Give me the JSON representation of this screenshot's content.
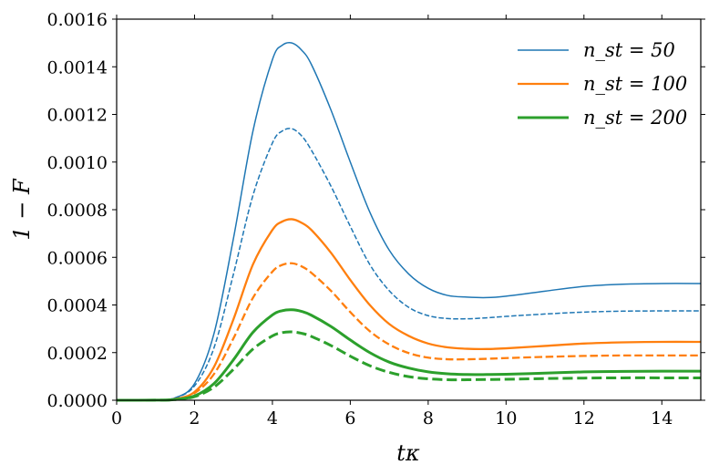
{
  "chart_data": {
    "type": "line",
    "xlabel": "tκ",
    "ylabel": "1 − F",
    "xlim": [
      0,
      15
    ],
    "ylim": [
      0,
      0.0016
    ],
    "xticks": [
      "0",
      "2",
      "4",
      "6",
      "8",
      "10",
      "12",
      "14"
    ],
    "yticks": [
      "0.0000",
      "0.0002",
      "0.0004",
      "0.0006",
      "0.0008",
      "0.0010",
      "0.0012",
      "0.0014",
      "0.0016"
    ],
    "grid": false,
    "legend_position": "top-right",
    "legend": [
      {
        "label": "n_st = 50",
        "color": "#1f77b4"
      },
      {
        "label": "n_st = 100",
        "color": "#ff7f0e"
      },
      {
        "label": "n_st = 200",
        "color": "#2ca02c"
      }
    ],
    "series": [
      {
        "name": "n_st = 50",
        "color": "#1f77b4",
        "style": "solid",
        "x": [
          0,
          1,
          1.5,
          2,
          2.5,
          3,
          3.5,
          4,
          4.25,
          4.5,
          4.75,
          5,
          5.5,
          6,
          6.5,
          7,
          7.5,
          8,
          8.5,
          9,
          9.5,
          10,
          11,
          12,
          13,
          14,
          15
        ],
        "y": [
          0,
          1e-06,
          1e-05,
          7e-05,
          0.00028,
          0.00068,
          0.00113,
          0.00143,
          0.00149,
          0.0015,
          0.00147,
          0.00141,
          0.00122,
          0.001,
          0.00079,
          0.00063,
          0.00053,
          0.00047,
          0.00044,
          0.000433,
          0.000431,
          0.000437,
          0.000458,
          0.000478,
          0.000487,
          0.00049,
          0.00049
        ]
      },
      {
        "name": "",
        "color": "#1f77b4",
        "style": "dashed",
        "x": [
          0,
          1,
          1.5,
          2,
          2.5,
          3,
          3.5,
          4,
          4.25,
          4.5,
          4.75,
          5,
          5.5,
          6,
          6.5,
          7,
          7.5,
          8,
          8.5,
          9,
          9.5,
          10,
          11,
          12,
          13,
          14,
          15
        ],
        "y": [
          0,
          1e-06,
          1e-05,
          6e-05,
          0.00022,
          0.00053,
          0.00086,
          0.00108,
          0.00113,
          0.00114,
          0.00111,
          0.00105,
          0.0009,
          0.00073,
          0.00057,
          0.00046,
          0.00039,
          0.000355,
          0.000343,
          0.000342,
          0.000346,
          0.000352,
          0.000362,
          0.00037,
          0.000374,
          0.000375,
          0.000375
        ]
      },
      {
        "name": "n_st = 100",
        "color": "#ff7f0e",
        "style": "solid",
        "x": [
          0,
          1,
          1.5,
          2,
          2.5,
          3,
          3.5,
          4,
          4.25,
          4.5,
          4.75,
          5,
          5.5,
          6,
          6.5,
          7,
          7.5,
          8,
          8.5,
          9,
          9.5,
          10,
          11,
          12,
          13,
          14,
          15
        ],
        "y": [
          0,
          5e-07,
          5e-06,
          3.5e-05,
          0.00014,
          0.00034,
          0.00057,
          0.000715,
          0.00075,
          0.00076,
          0.000745,
          0.000715,
          0.00062,
          0.000505,
          0.0004,
          0.00032,
          0.00027,
          0.000238,
          0.000222,
          0.000216,
          0.000215,
          0.000218,
          0.000228,
          0.000238,
          0.000243,
          0.000245,
          0.000245
        ]
      },
      {
        "name": "",
        "color": "#ff7f0e",
        "style": "dashed",
        "x": [
          0,
          1,
          1.5,
          2,
          2.5,
          3,
          3.5,
          4,
          4.25,
          4.5,
          4.75,
          5,
          5.5,
          6,
          6.5,
          7,
          7.5,
          8,
          8.5,
          9,
          9.5,
          10,
          11,
          12,
          13,
          14,
          15
        ],
        "y": [
          0,
          5e-07,
          5e-06,
          3e-05,
          0.00011,
          0.00026,
          0.00043,
          0.00054,
          0.000568,
          0.000575,
          0.000562,
          0.000535,
          0.00046,
          0.00037,
          0.00029,
          0.000234,
          0.000198,
          0.000179,
          0.000172,
          0.000172,
          0.000174,
          0.000177,
          0.000182,
          0.000186,
          0.000188,
          0.000188,
          0.000188
        ]
      },
      {
        "name": "n_st = 200",
        "color": "#2ca02c",
        "style": "solid",
        "x": [
          0,
          1,
          1.5,
          2,
          2.5,
          3,
          3.5,
          4,
          4.25,
          4.5,
          4.75,
          5,
          5.5,
          6,
          6.5,
          7,
          7.5,
          8,
          8.5,
          9,
          9.5,
          10,
          11,
          12,
          13,
          14,
          15
        ],
        "y": [
          0,
          3e-07,
          3e-06,
          1.8e-05,
          7e-05,
          0.00017,
          0.000285,
          0.000358,
          0.000376,
          0.00038,
          0.000373,
          0.000357,
          0.00031,
          0.000253,
          0.0002,
          0.00016,
          0.000135,
          0.000119,
          0.000111,
          0.000108,
          0.000108,
          0.000109,
          0.000114,
          0.000119,
          0.000121,
          0.000122,
          0.000122
        ]
      },
      {
        "name": "",
        "color": "#2ca02c",
        "style": "dashed",
        "x": [
          0,
          1,
          1.5,
          2,
          2.5,
          3,
          3.5,
          4,
          4.25,
          4.5,
          4.75,
          5,
          5.5,
          6,
          6.5,
          7,
          7.5,
          8,
          8.5,
          9,
          9.5,
          10,
          11,
          12,
          13,
          14,
          15
        ],
        "y": [
          0,
          3e-07,
          3e-06,
          1.5e-05,
          5.5e-05,
          0.00013,
          0.000215,
          0.00027,
          0.000284,
          0.000287,
          0.000281,
          0.000268,
          0.00023,
          0.000185,
          0.000145,
          0.000117,
          9.9e-05,
          9e-05,
          8.6e-05,
          8.6e-05,
          8.7e-05,
          8.8e-05,
          9.1e-05,
          9.3e-05,
          9.4e-05,
          9.4e-05,
          9.4e-05
        ]
      }
    ]
  }
}
